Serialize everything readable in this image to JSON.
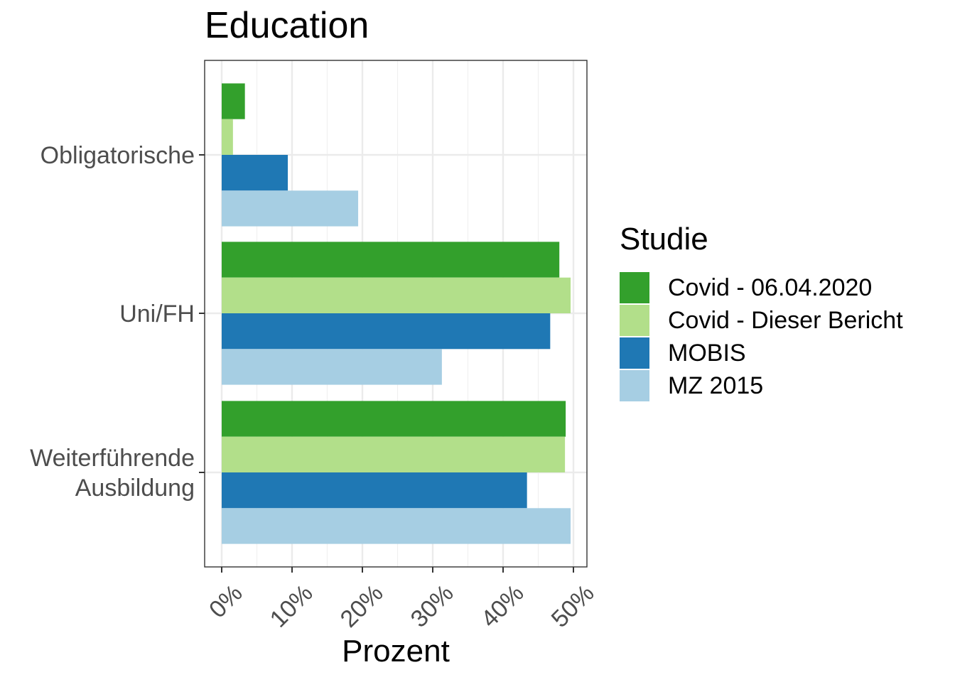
{
  "chart_data": {
    "type": "bar",
    "orientation": "horizontal",
    "title": "Education",
    "xlabel": "Prozent",
    "ylabel": "",
    "categories": [
      "Obligatorische",
      "Uni/FH",
      "Weiterführende\nAusbildung"
    ],
    "category_lines": [
      [
        "Obligatorische"
      ],
      [
        "Uni/FH"
      ],
      [
        "Weiterführende",
        "Ausbildung"
      ]
    ],
    "x_ticks": [
      "0%",
      "10%",
      "20%",
      "30%",
      "40%",
      "50%"
    ],
    "xlim": [
      0,
      51.7
    ],
    "legend_title": "Studie",
    "legend_position": "right",
    "grid": true,
    "series": [
      {
        "name": "Covid - 06.04.2020",
        "color": "#33a02c",
        "values": [
          3.3,
          48.0,
          48.9
        ]
      },
      {
        "name": "Covid - Dieser Bericht",
        "color": "#b2df8a",
        "values": [
          1.6,
          49.6,
          48.8
        ]
      },
      {
        "name": "MOBIS",
        "color": "#1f78b4",
        "values": [
          9.4,
          46.7,
          43.4
        ]
      },
      {
        "name": "MZ 2015",
        "color": "#a6cee3",
        "values": [
          19.4,
          31.3,
          49.6
        ]
      }
    ]
  }
}
